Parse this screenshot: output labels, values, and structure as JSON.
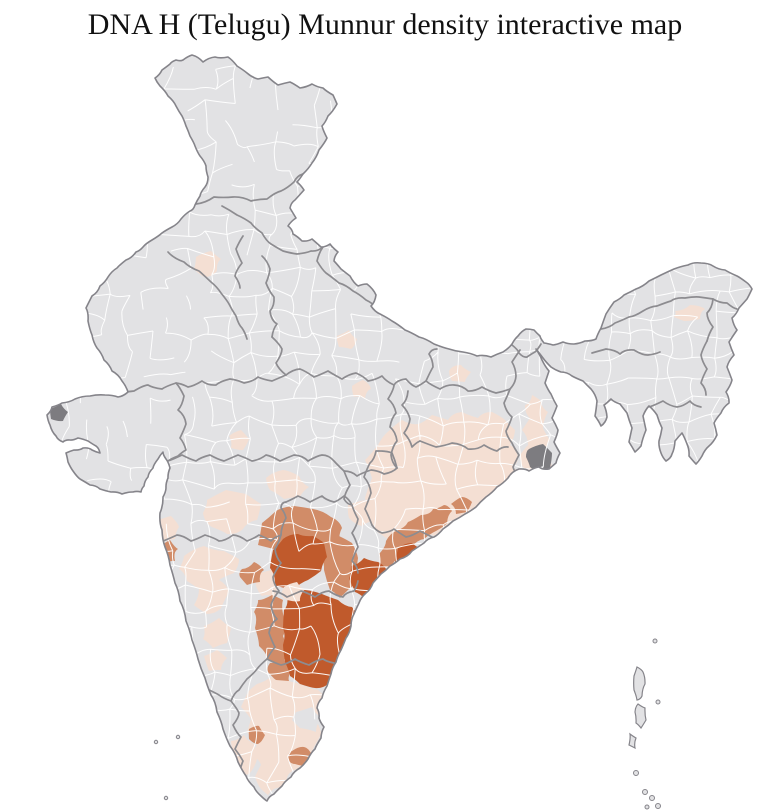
{
  "title": "DNA H (Telugu) Munnur density interactive map",
  "palette": {
    "background": "#ffffff",
    "district_base": "#e2e2e4",
    "density_low": "#f4dfd3",
    "density_mid": "#d18c68",
    "density_high": "#c05a2c",
    "district_border": "#ffffff",
    "state_border": "#8d8c90",
    "country_border": "#85848a",
    "water_feature": "#7d7c80",
    "title_color": "#111111"
  },
  "map": {
    "name": "India district-level choropleth",
    "legend_visible": false,
    "regions": [
      {
        "id": "odisha_belt",
        "name": "Odisha and south Chhattisgarh belt",
        "density": "low"
      },
      {
        "id": "wb_strip",
        "name": "South West Bengal strip",
        "density": "low"
      },
      {
        "id": "marathwada",
        "name": "Marathwada districts",
        "density": "low"
      },
      {
        "id": "vidarbha",
        "name": "Vidarbha districts",
        "density": "low"
      },
      {
        "id": "east_vidarbha",
        "name": "East Vidarbha fringe",
        "density": "low"
      },
      {
        "id": "north_karnataka",
        "name": "North Karnataka districts",
        "density": "low"
      },
      {
        "id": "karnataka_interior",
        "name": "Karnataka interior patch",
        "density": "low"
      },
      {
        "id": "tamil_nadu",
        "name": "Tamil Nadu districts",
        "density": "low"
      },
      {
        "id": "palakkad",
        "name": "Palakkad gap patch",
        "density": "low"
      },
      {
        "id": "south_kerala",
        "name": "South Kerala districts",
        "density": "low"
      },
      {
        "id": "punjab_spot",
        "name": "Punjab district",
        "density": "low"
      },
      {
        "id": "west_mp_spot",
        "name": "West Madhya Pradesh district",
        "density": "low"
      },
      {
        "id": "bundelkhand_spot",
        "name": "UP-MP border district",
        "density": "low"
      },
      {
        "id": "baghelkhand_spot",
        "name": "East UP border district",
        "density": "low"
      },
      {
        "id": "bihar_spot",
        "name": "Bihar district",
        "density": "low"
      },
      {
        "id": "assam_spot",
        "name": "Upper Assam district",
        "density": "low"
      },
      {
        "id": "ratnagiri",
        "name": "North Konkan coast district",
        "density": "low"
      },
      {
        "id": "west_telangana_pale",
        "name": "West Telangana pale patch",
        "density": "low"
      },
      {
        "id": "chittoor_belt",
        "name": "Chittoor-Nellore fringe",
        "density": "low"
      },
      {
        "id": "adilabad_band",
        "name": "North Telangana border belt",
        "density": "mid"
      },
      {
        "id": "khammam_belt",
        "name": "Khammam-Warangal belt",
        "density": "mid"
      },
      {
        "id": "vizag_coast",
        "name": "Visakhapatnam coastal belt",
        "density": "mid"
      },
      {
        "id": "srikakulam",
        "name": "Srikakulam patch",
        "density": "mid"
      },
      {
        "id": "goa_konkan",
        "name": "Goa and south Konkan coast",
        "density": "mid"
      },
      {
        "id": "bidar_patch",
        "name": "Bidar patch",
        "density": "mid"
      },
      {
        "id": "pondicherry_patch",
        "name": "Cuddalore-Puducherry patch",
        "density": "mid"
      },
      {
        "id": "mysore_patch",
        "name": "South Karnataka patch",
        "density": "mid"
      },
      {
        "id": "anantapur_belt",
        "name": "Anantapur belt",
        "density": "mid"
      },
      {
        "id": "sw_rayalaseema",
        "name": "Southwest Rayalaseema patch",
        "density": "mid"
      },
      {
        "id": "telangana_north",
        "name": "North Telangana districts",
        "density": "high"
      },
      {
        "id": "godavari_delta",
        "name": "Godavari delta districts",
        "density": "high"
      },
      {
        "id": "south_coastal_ap",
        "name": "South coastal Andhra and Rayalaseema",
        "density": "high"
      },
      {
        "id": "krishna_coast",
        "name": "Krishna coast district",
        "density": "high"
      },
      {
        "id": "hyderabad_pale",
        "name": "Hyderabad city district",
        "density": "low"
      },
      {
        "id": "central_tn_gray",
        "name": "Central Tamil Nadu districts",
        "density": "base"
      }
    ],
    "water_features": [
      {
        "id": "sundarbans",
        "name": "Sundarbans delta"
      },
      {
        "id": "rann_kutch",
        "name": "Rann of Kutch patch"
      },
      {
        "id": "chilika",
        "name": "Chilika lake"
      },
      {
        "id": "kolleru",
        "name": "Kolleru lake"
      }
    ],
    "islands": [
      {
        "id": "andaman",
        "name": "Andaman and Nicobar Islands"
      },
      {
        "id": "lakshadweep",
        "name": "Lakshadweep"
      }
    ]
  }
}
